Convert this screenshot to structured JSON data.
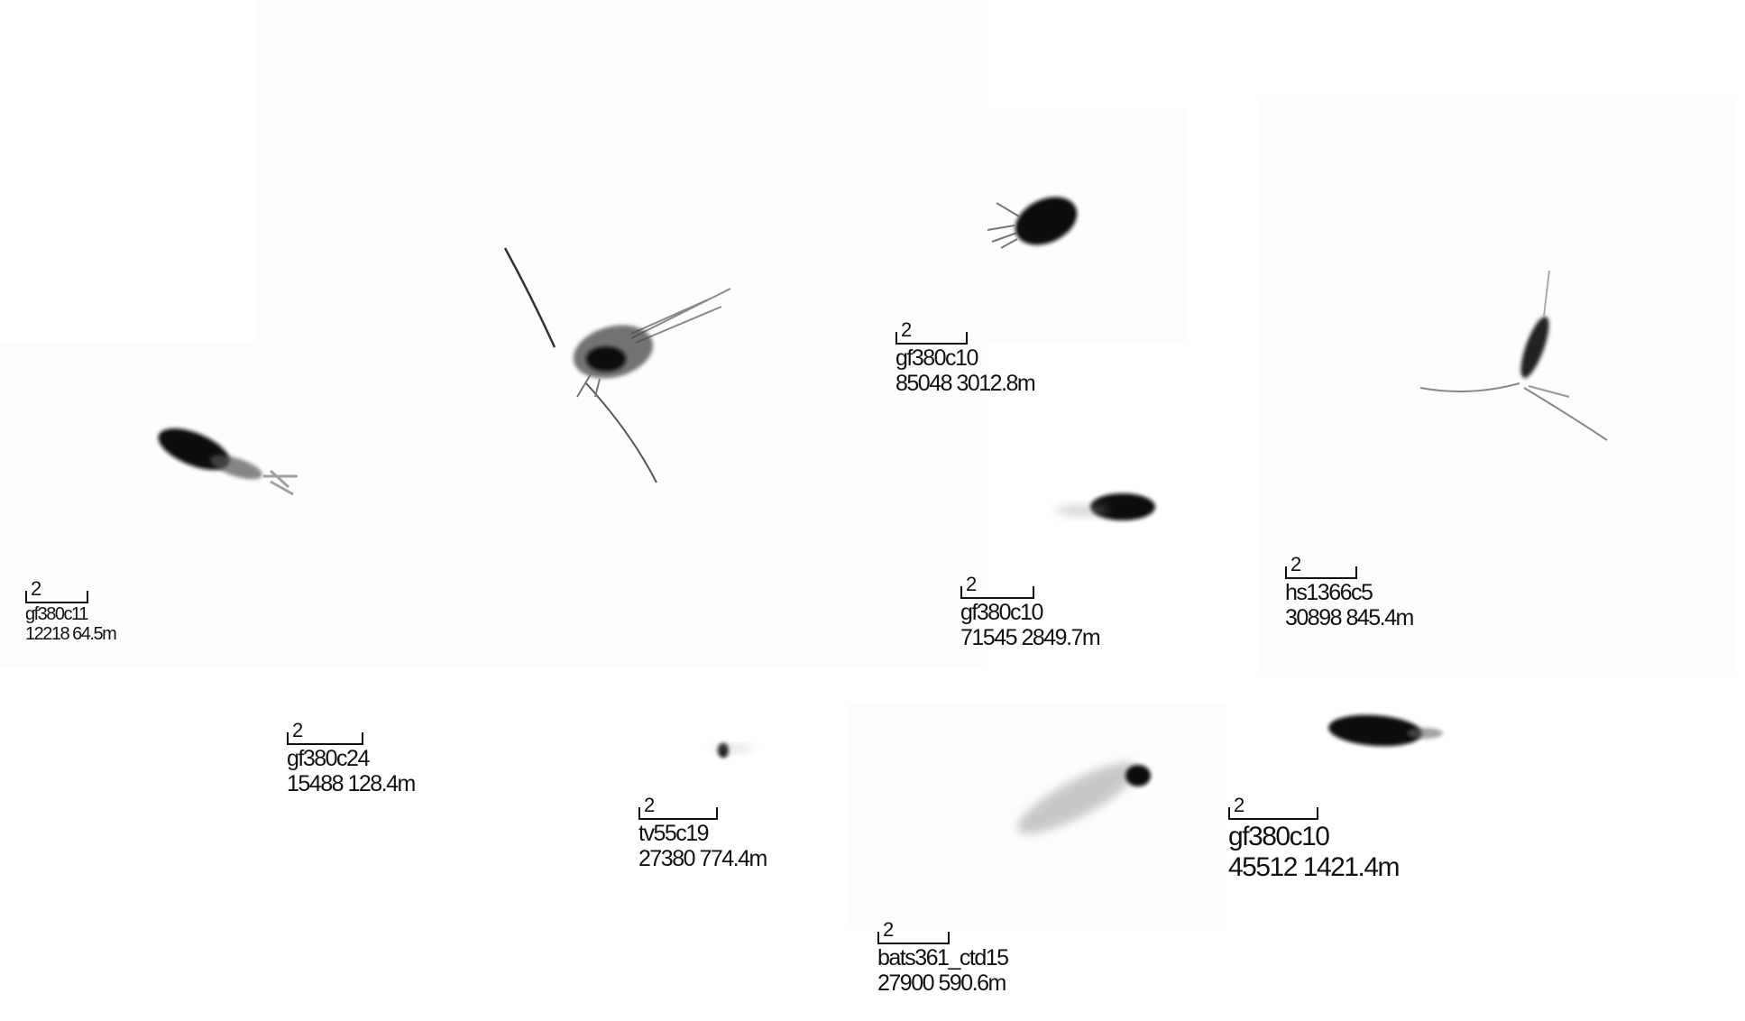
{
  "specimens": [
    {
      "id": "a",
      "icon": "copepod-specimen",
      "scale": "2",
      "line1": "gf380c11",
      "line2": "12218 64.5m"
    },
    {
      "id": "b",
      "icon": "copepod-specimen",
      "scale": "2",
      "line1": "gf380c24",
      "line2": "15488 128.4m"
    },
    {
      "id": "c",
      "icon": "copepod-specimen",
      "scale": "2",
      "line1": "gf380c10",
      "line2": "85048 3012.8m"
    },
    {
      "id": "d",
      "icon": "copepod-specimen",
      "scale": "2",
      "line1": "gf380c10",
      "line2": "71545 2849.7m"
    },
    {
      "id": "e",
      "icon": "copepod-specimen",
      "scale": "2",
      "line1": "hs1366c5",
      "line2": "30898 845.4m"
    },
    {
      "id": "f",
      "icon": "copepod-specimen",
      "scale": "2",
      "line1": "tv55c19",
      "line2": "27380 774.4m"
    },
    {
      "id": "g",
      "icon": "copepod-specimen",
      "scale": "2",
      "line1": "bats361_ctd15",
      "line2": "27900 590.6m"
    },
    {
      "id": "h",
      "icon": "copepod-specimen",
      "scale": "2",
      "line1": "gf380c10",
      "line2": "45512 1421.4m"
    }
  ]
}
